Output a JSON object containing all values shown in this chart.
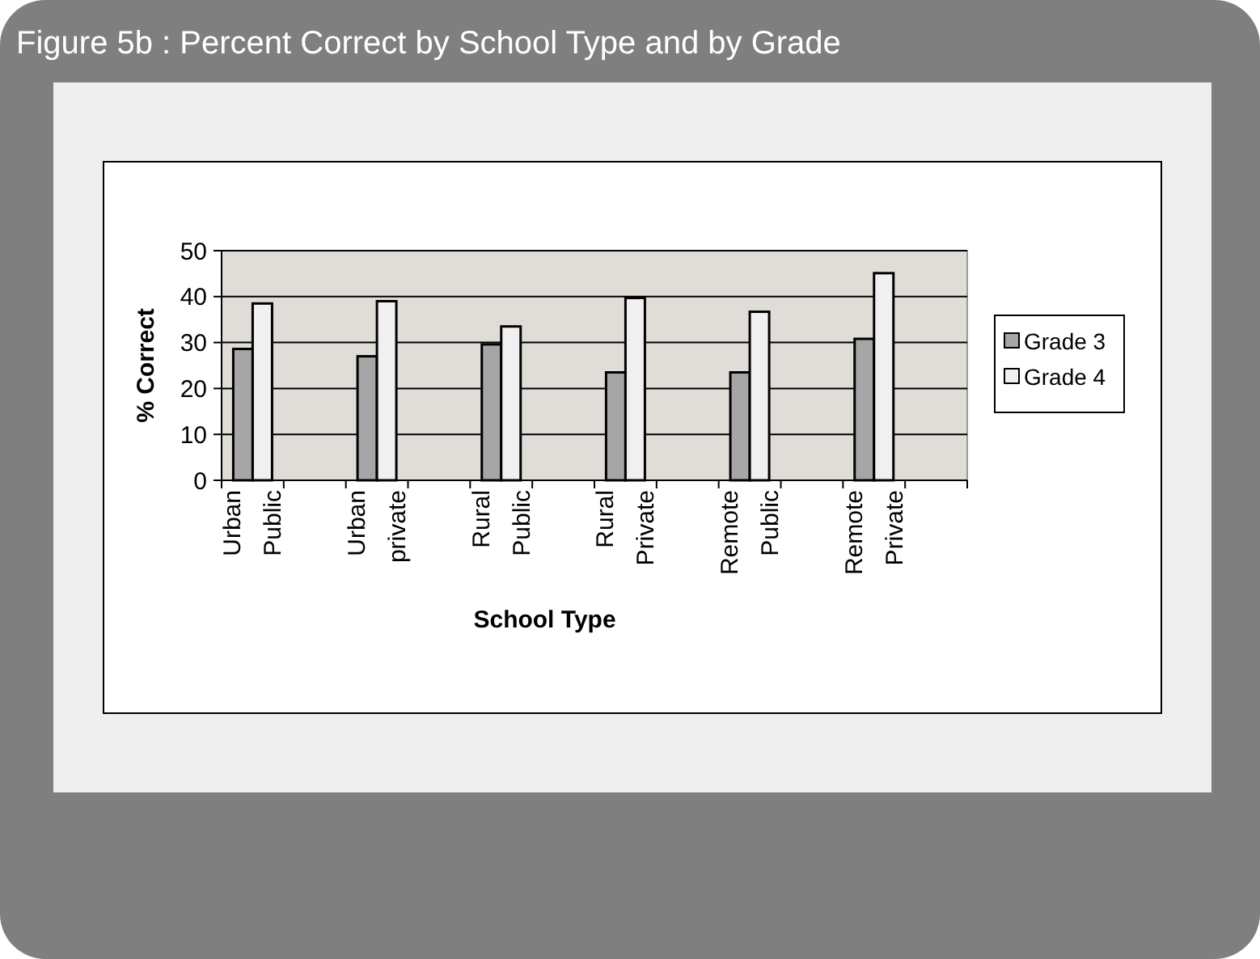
{
  "chart_data": {
    "type": "bar",
    "title": "Figure 5b : Percent Correct by School Type and by Grade",
    "categories": [
      "Urban Public",
      "Urban private",
      "Rural Public",
      "Rural Private",
      "Remote Public",
      "Remote Private"
    ],
    "series": [
      {
        "name": "Grade 3",
        "color": "#a6a6a6",
        "values": [
          28.6,
          27.0,
          29.6,
          23.5,
          23.5,
          30.8
        ]
      },
      {
        "name": "Grade 4",
        "color": "#f0f0f0",
        "values": [
          38.5,
          39.0,
          33.5,
          39.7,
          36.7,
          45.1
        ]
      }
    ],
    "xlabel": "School Type",
    "ylabel": "% Correct",
    "ylim": [
      0,
      50
    ],
    "yticks": [
      0,
      10,
      20,
      30,
      40,
      50
    ],
    "grid": "y",
    "legend": "right"
  }
}
